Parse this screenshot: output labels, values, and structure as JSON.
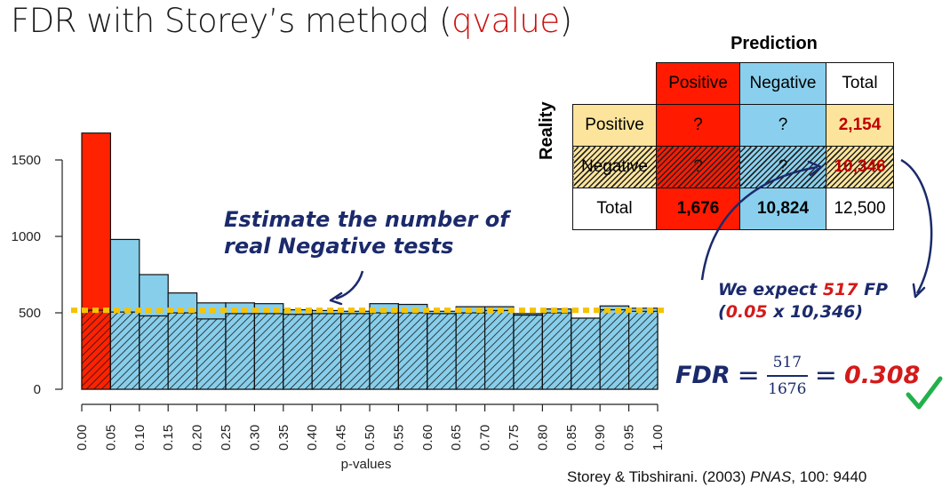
{
  "title": {
    "main": "FDR with Storey’s method (",
    "accent": "qvalue",
    "close": ")"
  },
  "chart_data": {
    "type": "bar",
    "xlabel": "p-values",
    "ylabel": "",
    "xlim": [
      0,
      1
    ],
    "ylim": [
      0,
      1700
    ],
    "y_ticks": [
      0,
      500,
      1000,
      1500
    ],
    "x_ticks": [
      "0.00",
      "0.05",
      "0.10",
      "0.15",
      "0.20",
      "0.25",
      "0.30",
      "0.35",
      "0.40",
      "0.45",
      "0.50",
      "0.55",
      "0.60",
      "0.65",
      "0.70",
      "0.75",
      "0.80",
      "0.85",
      "0.90",
      "0.95",
      "1.00"
    ],
    "bin_edges": [
      0,
      0.05,
      0.1,
      0.15,
      0.2,
      0.25,
      0.3,
      0.35,
      0.4,
      0.45,
      0.5,
      0.55,
      0.6,
      0.65,
      0.7,
      0.75,
      0.8,
      0.85,
      0.9,
      0.95,
      1.0
    ],
    "total_counts": [
      1676,
      980,
      750,
      630,
      565,
      565,
      560,
      520,
      515,
      510,
      560,
      555,
      510,
      540,
      540,
      495,
      525,
      465,
      545,
      530
    ],
    "null_counts": [
      517,
      505,
      480,
      500,
      460,
      495,
      495,
      490,
      495,
      495,
      500,
      500,
      495,
      500,
      515,
      485,
      500,
      465,
      520,
      510
    ],
    "null_level": 517,
    "colors": {
      "significant": "#ff2200",
      "nonsignificant": "#87ceeb",
      "null_line": "#f5c300"
    }
  },
  "annotation_negatives": {
    "line1": "Estimate the number of",
    "line2": "real Negative tests"
  },
  "matrix": {
    "title": "Prediction",
    "side_label": "Reality",
    "header": [
      "Positive",
      "Negative",
      "Total"
    ],
    "rows": [
      {
        "label": "Positive",
        "cells": [
          "?",
          "?",
          "2,154"
        ]
      },
      {
        "label": "Negative",
        "cells": [
          "?",
          "?",
          "10,346"
        ]
      },
      {
        "label": "Total",
        "cells": [
          "1,676",
          "10,824",
          "12,500"
        ]
      }
    ]
  },
  "annotation_fp": {
    "pre": "We expect ",
    "value": "517",
    "post": " FP",
    "line2_open": "(",
    "line2_red": "0.05",
    "line2_rest": " x 10,346)"
  },
  "fdr": {
    "label": "FDR",
    "eq": "=",
    "numerator": "517",
    "denominator": "1676",
    "eq2": "=",
    "result": "0.308"
  },
  "citation": {
    "authors": "Storey & Tibshirani. (2003) ",
    "journal": "PNAS",
    "rest": ", 100: 9440"
  }
}
